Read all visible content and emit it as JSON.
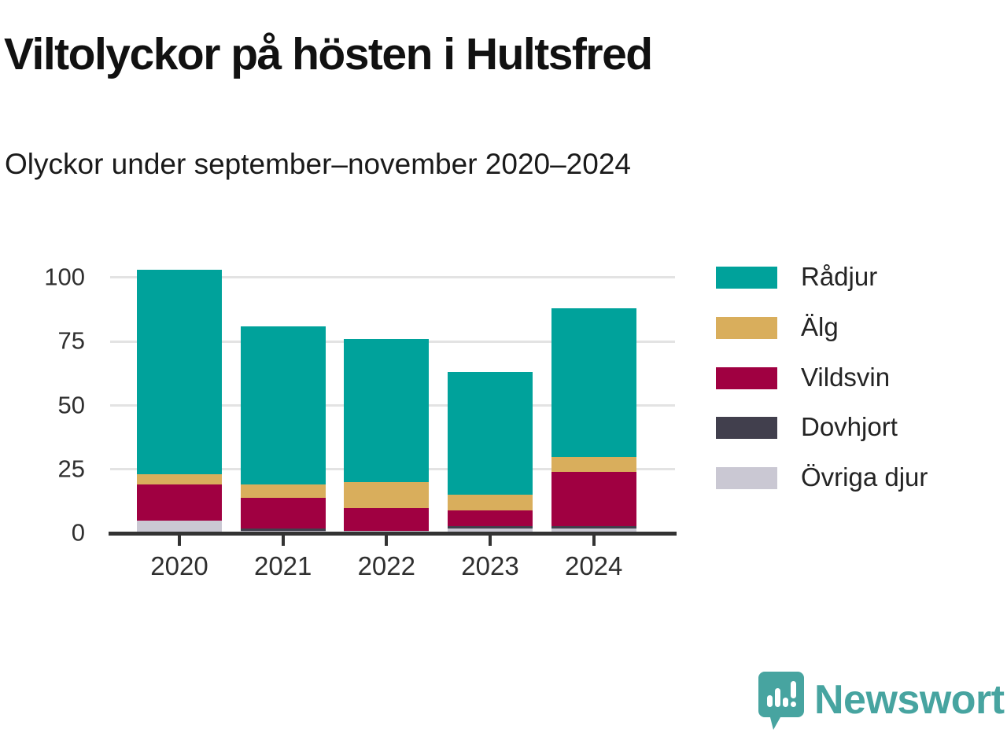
{
  "title": "Viltolyckor på hösten i Hultsfred",
  "subtitle": "Olyckor under september–november 2020–2024",
  "chart_data": {
    "type": "bar",
    "stacked": true,
    "title": "Viltolyckor på hösten i Hultsfred",
    "subtitle": "Olyckor under september–november 2020–2024",
    "categories": [
      "2020",
      "2021",
      "2022",
      "2023",
      "2024"
    ],
    "series": [
      {
        "name": "Rådjur",
        "color": "#00a29b",
        "values": [
          80,
          62,
          56,
          48,
          58
        ]
      },
      {
        "name": "Älg",
        "color": "#d9ae5c",
        "values": [
          4,
          5,
          10,
          6,
          6
        ]
      },
      {
        "name": "Vildsvin",
        "color": "#a00041",
        "values": [
          14,
          12,
          9,
          6,
          21
        ]
      },
      {
        "name": "Dovhjort",
        "color": "#413f4d",
        "values": [
          0,
          1,
          0,
          1,
          1
        ]
      },
      {
        "name": "Övriga djur",
        "color": "#cac8d3",
        "values": [
          5,
          1,
          1,
          2,
          2
        ]
      }
    ],
    "stack_order_bottom_to_top": [
      "Övriga djur",
      "Dovhjort",
      "Vildsvin",
      "Älg",
      "Rådjur"
    ],
    "totals": [
      103,
      81,
      76,
      63,
      88
    ],
    "xlabel": "",
    "ylabel": "",
    "ylim": [
      0,
      105
    ],
    "yticks": [
      0,
      25,
      50,
      75,
      100
    ],
    "grid": "horizontal",
    "legend_position": "right"
  },
  "colors": {
    "axis": "#333333",
    "gridline": "#e3e3e3",
    "text": "#2f2f2f",
    "brand_teal": "#47a4a0"
  },
  "footer": {
    "brand": "Newsworthy"
  }
}
